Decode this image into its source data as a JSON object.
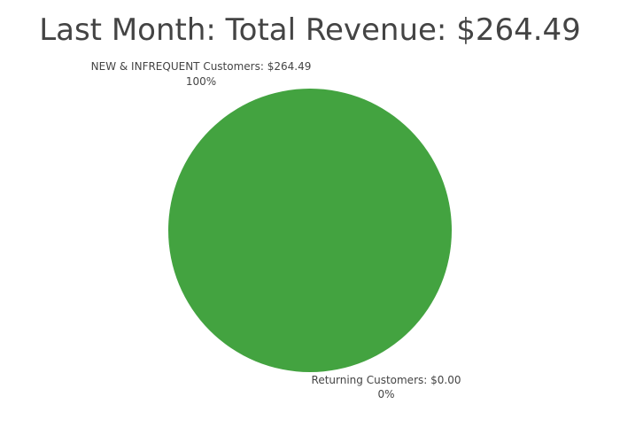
{
  "chart_data": {
    "type": "pie",
    "title": "Last Month: Total Revenue: $264.49",
    "labels": [
      "NEW & INFREQUENT Customers: $264.49",
      "Returning Customers: $0.00"
    ],
    "values": [
      264.49,
      0.0
    ],
    "percents": [
      "100%",
      "0%"
    ],
    "colors": [
      "#43a340",
      "#4f81bd"
    ],
    "legend": "none"
  }
}
